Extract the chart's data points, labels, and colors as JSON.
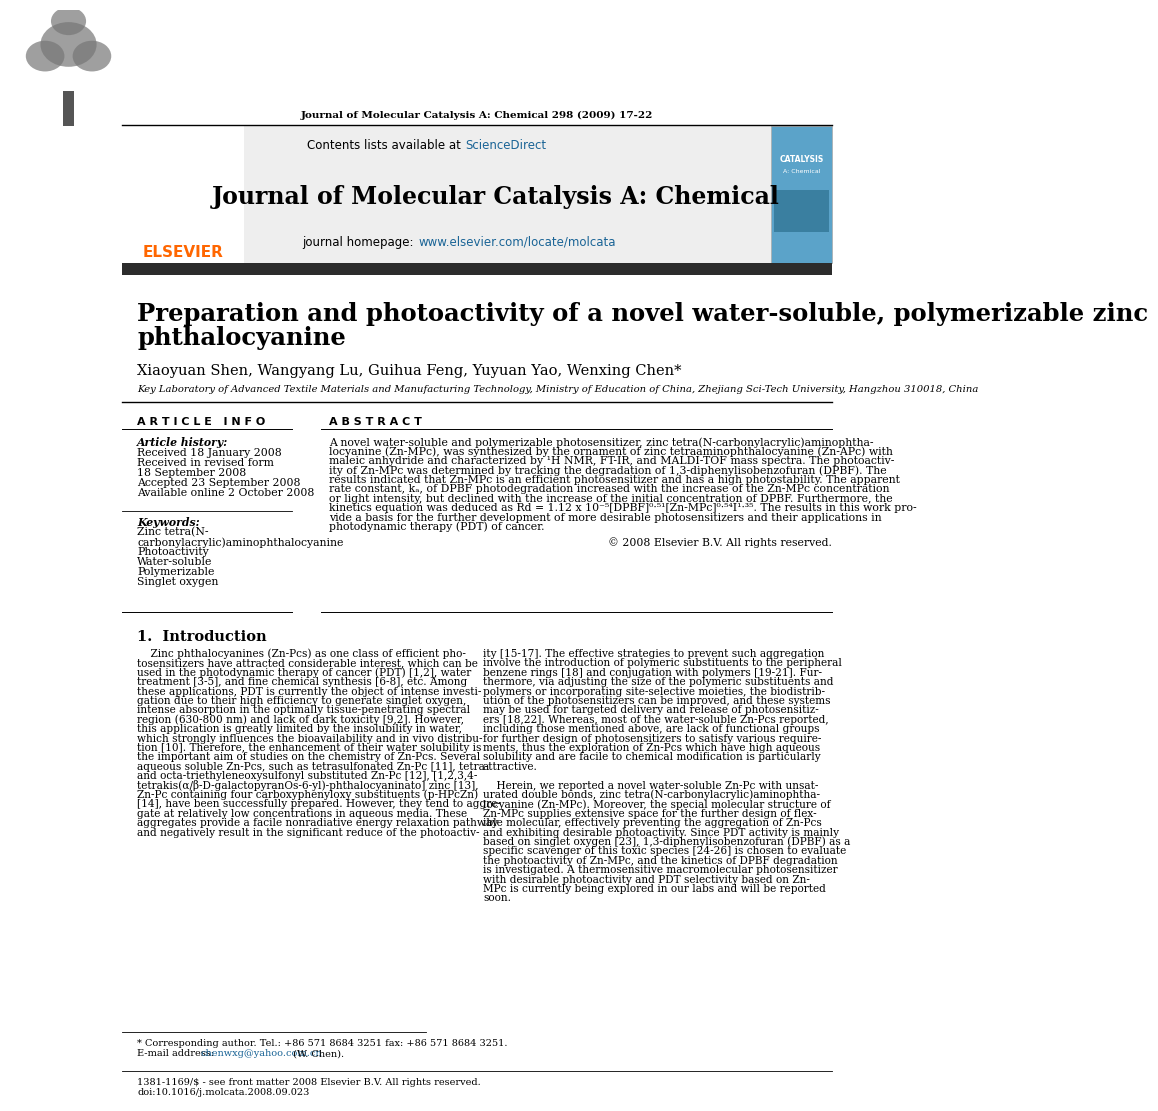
{
  "page_header": "Journal of Molecular Catalysis A: Chemical 298 (2009) 17-22",
  "journal_name": "Journal of Molecular Catalysis A: Chemical",
  "contents_text": "Contents lists available at ",
  "sciencedirect_text": "ScienceDirect",
  "homepage_label": "journal homepage: ",
  "homepage_url": "www.elsevier.com/locate/molcata",
  "paper_title_line1": "Preparation and photoactivity of a novel water-soluble, polymerizable zinc",
  "paper_title_line2": "phthalocyanine",
  "authors": "Xiaoyuan Shen, Wangyang Lu, Guihua Feng, Yuyuan Yao, Wenxing Chen",
  "affiliation": "Key Laboratory of Advanced Textile Materials and Manufacturing Technology, Ministry of Education of China, Zhejiang Sci-Tech University, Hangzhou 310018, China",
  "article_info_header": "A R T I C L E   I N F O",
  "abstract_header": "A B S T R A C T",
  "article_history_label": "Article history:",
  "received1": "Received 18 January 2008",
  "revised": "Received in revised form",
  "revised2": "18 September 2008",
  "accepted": "Accepted 23 September 2008",
  "available": "Available online 2 October 2008",
  "keywords_label": "Keywords:",
  "keywords": [
    "Zinc tetra(N-",
    "carbonylacrylic)aminophthalocyanine",
    "Photoactivity",
    "Water-soluble",
    "Polymerizable",
    "Singlet oxygen"
  ],
  "copyright": "2008 Elsevier B.V. All rights reserved.",
  "intro_header": "1.  Introduction",
  "footnote1": "* Corresponding author. Tel.: +86 571 8684 3251 fax: +86 571 8684 3251.",
  "footnote2_pre": "E-mail address: ",
  "footnote2_email": "chenwxg@yahoo.com.cn",
  "footnote2_post": " (W. Chen).",
  "footer1": "1381-1169/$ - see front matter",
  "footer1b": " 2008 Elsevier B.V. All rights reserved.",
  "footer2": "doi:10.1016/j.molcata.2008.09.023",
  "elsevier_color": "#FF6600",
  "link_color": "#1A6496",
  "header_bg": "#eeeeee",
  "dark_bar_color": "#2c2c2c",
  "abstract_lines": [
    "A novel water-soluble and polymerizable photosensitizer, zinc tetra(N-carbonylacrylic)aminophtha-",
    "locyanine (Zn-MPc), was synthesized by the ornament of zinc tetraaminophthalocyanine (Zn-APc) with",
    "maleic anhydride and characterized by ¹H NMR, FT-IR, and MALDI-TOF mass spectra. The photoactiv-",
    "ity of Zn-MPc was determined by tracking the degradation of 1,3-diphenylisobenzofuran (DPBF). The",
    "results indicated that Zn-MPc is an efficient photosensitizer and has a high photostability. The apparent",
    "rate constant, kₐ, of DPBF photodegradation increased with the increase of the Zn-MPc concentration",
    "or light intensity, but declined with the increase of the initial concentration of DPBF. Furthermore, the",
    "kinetics equation was deduced as Rd = 1.12 x 10⁻⁵[DPBF]⁰·⁵¹[Zn-MPc]⁰·⁵⁴I¹·³⁵. The results in this work pro-",
    "vide a basis for the further development of more desirable photosensitizers and their applications in",
    "photodynamic therapy (PDT) of cancer."
  ],
  "col1_lines": [
    "    Zinc phthalocyanines (Zn-Pcs) as one class of efficient pho-",
    "tosensitizers have attracted considerable interest, which can be",
    "used in the photodynamic therapy of cancer (PDT) [1,2], water",
    "treatment [3-5], and fine chemical synthesis [6-8], etc. Among",
    "these applications, PDT is currently the object of intense investi-",
    "gation due to their high efficiency to generate singlet oxygen,",
    "intense absorption in the optimally tissue-penetrating spectral",
    "region (630-800 nm) and lack of dark toxicity [9,2]. However,",
    "this application is greatly limited by the insolubility in water,",
    "which strongly influences the bioavailability and in vivo distribu-",
    "tion [10]. Therefore, the enhancement of their water solubility is",
    "the important aim of studies on the chemistry of Zn-Pcs. Several",
    "aqueous soluble Zn-Pcs, such as tetrasulfonated Zn-Pc [11], tetra-",
    "and octa-triethyleneoxysulfonyl substituted Zn-Pc [12], [1,2,3,4-",
    "tetrakis(α/β-D-galactopyranOs-6-yl)-phthalocyaninato] zinc [13],",
    "Zn-Pc containing four carboxyphenyloxy substituents (p-HPcZn)",
    "[14], have been successfully prepared. However, they tend to aggre-",
    "gate at relatively low concentrations in aqueous media. These",
    "aggregates provide a facile nonradiative energy relaxation pathway",
    "and negatively result in the significant reduce of the photoactiv-"
  ],
  "col2_lines": [
    "ity [15-17]. The effective strategies to prevent such aggregation",
    "involve the introduction of polymeric substituents to the peripheral",
    "benzene rings [18] and conjugation with polymers [19-21]. Fur-",
    "thermore, via adjusting the size of the polymeric substituents and",
    "polymers or incorporating site-selective moieties, the biodistrib-",
    "ution of the photosensitizers can be improved, and these systems",
    "may be used for targeted delivery and release of photosensitiz-",
    "ers [18,22]. Whereas, most of the water-soluble Zn-Pcs reported,",
    "including those mentioned above, are lack of functional groups",
    "for further design of photosensitizers to satisfy various require-",
    "ments, thus the exploration of Zn-Pcs which have high aqueous",
    "solubility and are facile to chemical modification is particularly",
    "attractive.",
    "",
    "    Herein, we reported a novel water-soluble Zn-Pc with unsat-",
    "urated double bonds, zinc tetra(N-carbonylacrylic)aminophtha-",
    "locyanine (Zn-MPc). Moreover, the special molecular structure of",
    "Zn-MPc supplies extensive space for the further design of flex-",
    "ible molecular, effectively preventing the aggregation of Zn-Pcs",
    "and exhibiting desirable photoactivity. Since PDT activity is mainly",
    "based on singlet oxygen [23], 1,3-diphenylisobenzofuran (DPBF) as a",
    "specific scavenger of this toxic species [24-26] is chosen to evaluate",
    "the photoactivity of Zn-MPc, and the kinetics of DPBF degradation",
    "is investigated. A thermosensitive macromolecular photosensitizer",
    "with desirable photoactivity and PDT selectivity based on Zn-",
    "MPc is currently being explored in our labs and will be reported",
    "soon."
  ]
}
